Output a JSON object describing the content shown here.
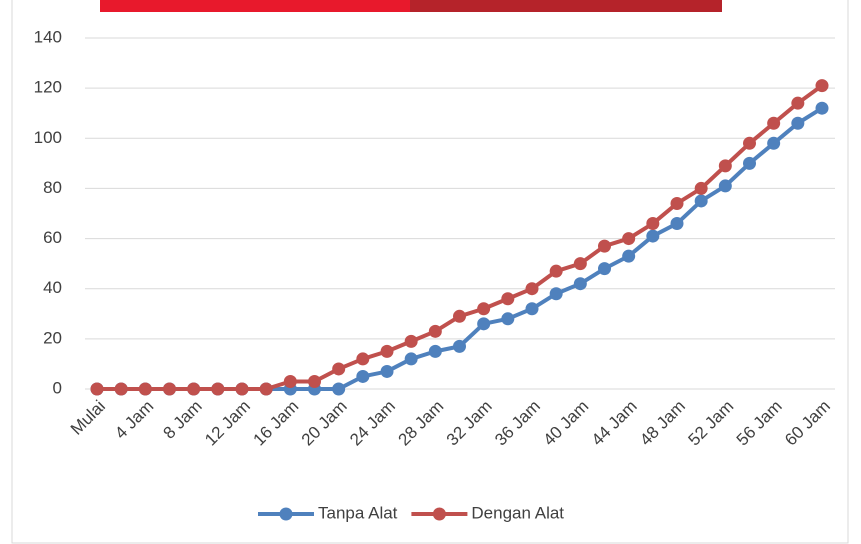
{
  "chart_data": {
    "type": "line",
    "categories": [
      "Mulai",
      null,
      "4 Jam",
      null,
      "8 Jam",
      null,
      "12 Jam",
      null,
      "16 Jam",
      null,
      "20 Jam",
      null,
      "24 Jam",
      null,
      "28 Jam",
      null,
      "32 Jam",
      null,
      "36 Jam",
      null,
      "40 Jam",
      null,
      "44 Jam",
      null,
      "48 Jam",
      null,
      "52 Jam",
      null,
      "56 Jam",
      null,
      "60 Jam"
    ],
    "series": [
      {
        "name": "Tanpa Alat",
        "color": "#4f81bd",
        "values": [
          0,
          0,
          0,
          0,
          0,
          0,
          0,
          0,
          0,
          0,
          0,
          5,
          7,
          12,
          15,
          17,
          26,
          28,
          32,
          38,
          42,
          48,
          53,
          61,
          66,
          75,
          81,
          90,
          98,
          106,
          112
        ]
      },
      {
        "name": "Dengan Alat",
        "color": "#c0504d",
        "values": [
          0,
          0,
          0,
          0,
          0,
          0,
          0,
          0,
          3,
          3,
          8,
          12,
          15,
          19,
          23,
          29,
          32,
          36,
          40,
          47,
          50,
          57,
          60,
          66,
          74,
          80,
          89,
          98,
          106,
          114,
          121
        ]
      }
    ],
    "ylim": [
      0,
      140
    ],
    "yticks": [
      0,
      20,
      40,
      60,
      80,
      100,
      120,
      140
    ],
    "grid": true,
    "legend": "bottom"
  }
}
